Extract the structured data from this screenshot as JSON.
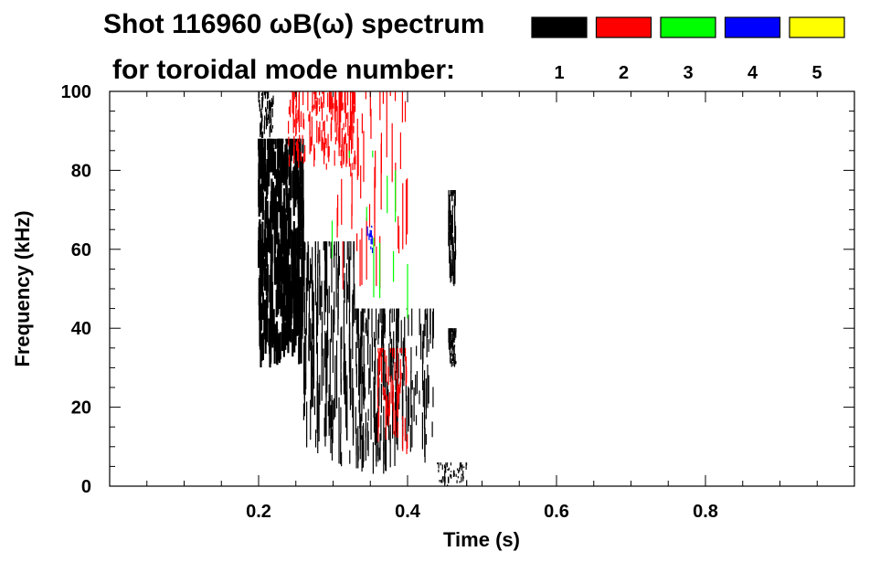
{
  "chart_data": {
    "type": "heatmap",
    "title_line1": "Shot 116960 ωB(ω) spectrum",
    "title_line2": "for toroidal mode number:",
    "xlabel": "Time (s)",
    "ylabel": "Frequency (kHz)",
    "xlim": [
      0.0,
      1.0
    ],
    "ylim": [
      0,
      100
    ],
    "x_ticks": [
      0.2,
      0.4,
      0.6,
      0.8
    ],
    "x_tick_labels": [
      "0.2",
      "0.4",
      "0.6",
      "0.8"
    ],
    "y_ticks": [
      0,
      20,
      40,
      60,
      80,
      100
    ],
    "y_tick_labels": [
      "0",
      "20",
      "40",
      "60",
      "80",
      "100"
    ],
    "grid": false,
    "legend": {
      "placement": "top",
      "entries": [
        {
          "label": "1",
          "color": "#000000"
        },
        {
          "label": "2",
          "color": "#ff0000"
        },
        {
          "label": "3",
          "color": "#00ff00"
        },
        {
          "label": "4",
          "color": "#0000ff"
        },
        {
          "label": "5",
          "color": "#ffff00"
        }
      ]
    },
    "regions": [
      {
        "mode": 1,
        "t_range": [
          0.2,
          0.26
        ],
        "f_range": [
          30,
          88
        ],
        "density": "dense"
      },
      {
        "mode": 1,
        "t_range": [
          0.2,
          0.22
        ],
        "f_range": [
          88,
          100
        ],
        "density": "sparse"
      },
      {
        "mode": 1,
        "t_range": [
          0.26,
          0.33
        ],
        "f_range": [
          5,
          62
        ],
        "density": "medium"
      },
      {
        "mode": 1,
        "t_range": [
          0.33,
          0.39
        ],
        "f_range": [
          3,
          45
        ],
        "density": "medium"
      },
      {
        "mode": 1,
        "t_range": [
          0.39,
          0.435
        ],
        "f_range": [
          5,
          45
        ],
        "density": "sparse"
      },
      {
        "mode": 1,
        "t_range": [
          0.44,
          0.48
        ],
        "f_range": [
          0,
          6
        ],
        "density": "sparse"
      },
      {
        "mode": 1,
        "t_range": [
          0.455,
          0.465
        ],
        "f_range": [
          50,
          75
        ],
        "density": "sparse"
      },
      {
        "mode": 1,
        "t_range": [
          0.455,
          0.465
        ],
        "f_range": [
          30,
          40
        ],
        "density": "sparse"
      },
      {
        "mode": 2,
        "t_range": [
          0.24,
          0.33
        ],
        "f_range": [
          80,
          100
        ],
        "density": "medium"
      },
      {
        "mode": 2,
        "t_range": [
          0.3,
          0.4
        ],
        "f_range": [
          45,
          100
        ],
        "density": "sparse"
      },
      {
        "mode": 2,
        "t_range": [
          0.36,
          0.4
        ],
        "f_range": [
          8,
          35
        ],
        "density": "sparse"
      },
      {
        "mode": 3,
        "t_range": [
          0.29,
          0.4
        ],
        "f_range": [
          35,
          85
        ],
        "density": "trace"
      },
      {
        "mode": 4,
        "t_range": [
          0.345,
          0.355
        ],
        "f_range": [
          58,
          66
        ],
        "density": "trace"
      }
    ]
  }
}
